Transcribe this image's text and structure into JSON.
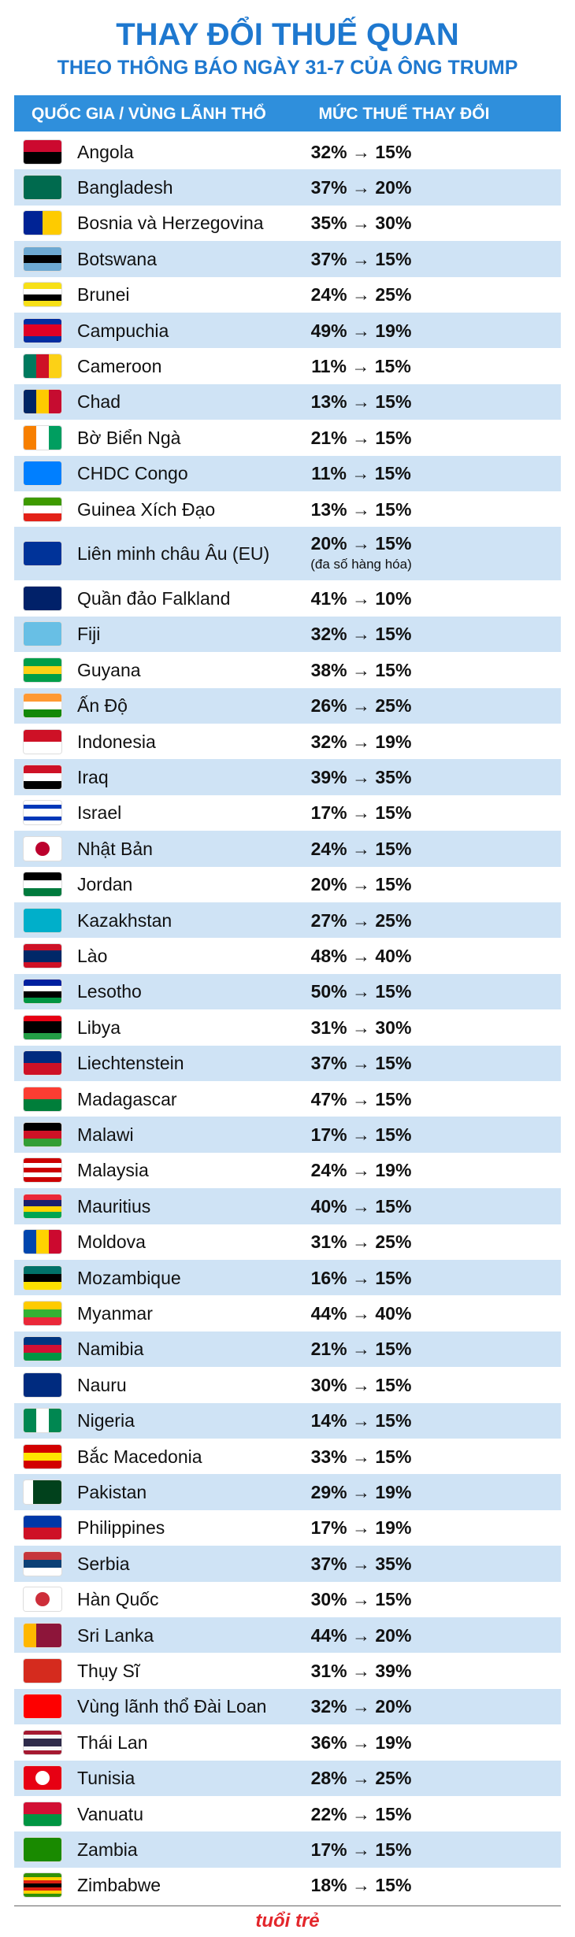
{
  "header": {
    "title": "THAY ĐỔI THUẾ QUAN",
    "subtitle": "THEO THÔNG BÁO NGÀY 31-7 CỦA ÔNG TRUMP"
  },
  "table": {
    "columns": [
      "QUỐC GIA / VÙNG LÃNH THỔ",
      "MỨC THUẾ THAY ĐỔI"
    ],
    "rows": [
      {
        "country": "Angola",
        "rate": "32% → 15%"
      },
      {
        "country": "Bangladesh",
        "rate": "37% → 20%"
      },
      {
        "country": "Bosnia và Herzegovina",
        "rate": "35% → 30%"
      },
      {
        "country": "Botswana",
        "rate": "37% → 15%"
      },
      {
        "country": "Brunei",
        "rate": "24% → 25%"
      },
      {
        "country": "Campuchia",
        "rate": "49% → 19%"
      },
      {
        "country": "Cameroon",
        "rate": "11% → 15%"
      },
      {
        "country": "Chad",
        "rate": "13% → 15%"
      },
      {
        "country": "Bờ Biển Ngà",
        "rate": "21% → 15%"
      },
      {
        "country": "CHDC Congo",
        "rate": "11% → 15%"
      },
      {
        "country": "Guinea Xích Đạo",
        "rate": "13% → 15%"
      },
      {
        "country": "Liên minh châu Âu (EU)",
        "rate": "20% → 15%",
        "note": "(đa số hàng hóa)"
      },
      {
        "country": "Quần đảo Falkland",
        "rate": "41% → 10%"
      },
      {
        "country": "Fiji",
        "rate": "32% → 15%"
      },
      {
        "country": "Guyana",
        "rate": "38% → 15%"
      },
      {
        "country": "Ấn Độ",
        "rate": "26% → 25%"
      },
      {
        "country": "Indonesia",
        "rate": "32% → 19%"
      },
      {
        "country": "Iraq",
        "rate": "39% → 35%"
      },
      {
        "country": "Israel",
        "rate": "17% → 15%"
      },
      {
        "country": "Nhật Bản",
        "rate": "24% → 15%"
      },
      {
        "country": "Jordan",
        "rate": "20% → 15%"
      },
      {
        "country": "Kazakhstan",
        "rate": "27% → 25%"
      },
      {
        "country": "Lào",
        "rate": "48% → 40%"
      },
      {
        "country": "Lesotho",
        "rate": "50% → 15%"
      },
      {
        "country": "Libya",
        "rate": "31% → 30%"
      },
      {
        "country": "Liechtenstein",
        "rate": "37% → 15%"
      },
      {
        "country": "Madagascar",
        "rate": "47% → 15%"
      },
      {
        "country": "Malawi",
        "rate": "17% → 15%"
      },
      {
        "country": "Malaysia",
        "rate": "24% → 19%"
      },
      {
        "country": "Mauritius",
        "rate": "40% → 15%"
      },
      {
        "country": "Moldova",
        "rate": "31% → 25%"
      },
      {
        "country": "Mozambique",
        "rate": "16% → 15%"
      },
      {
        "country": "Myanmar",
        "rate": "44% → 40%"
      },
      {
        "country": "Namibia",
        "rate": "21% → 15%"
      },
      {
        "country": "Nauru",
        "rate": "30% → 15%"
      },
      {
        "country": "Nigeria",
        "rate": "14% → 15%"
      },
      {
        "country": "Bắc Macedonia",
        "rate": "33% → 15%"
      },
      {
        "country": "Pakistan",
        "rate": "29% → 19%"
      },
      {
        "country": "Philippines",
        "rate": "17% → 19%"
      },
      {
        "country": "Serbia",
        "rate": "37% → 35%"
      },
      {
        "country": "Hàn Quốc",
        "rate": "30% → 15%"
      },
      {
        "country": "Sri Lanka",
        "rate": "44% → 20%"
      },
      {
        "country": "Thụy Sĩ",
        "rate": "31% → 39%"
      },
      {
        "country": "Vùng lãnh thổ Đài Loan",
        "rate": "32% → 20%"
      },
      {
        "country": "Thái Lan",
        "rate": "36% → 19%"
      },
      {
        "country": "Tunisia",
        "rate": "28% → 25%"
      },
      {
        "country": "Vanuatu",
        "rate": "22% → 15%"
      },
      {
        "country": "Zambia",
        "rate": "17% → 15%"
      },
      {
        "country": "Zimbabwe",
        "rate": "18% → 15%"
      }
    ]
  },
  "footer": {
    "logo": "tuổi trẻ"
  }
}
